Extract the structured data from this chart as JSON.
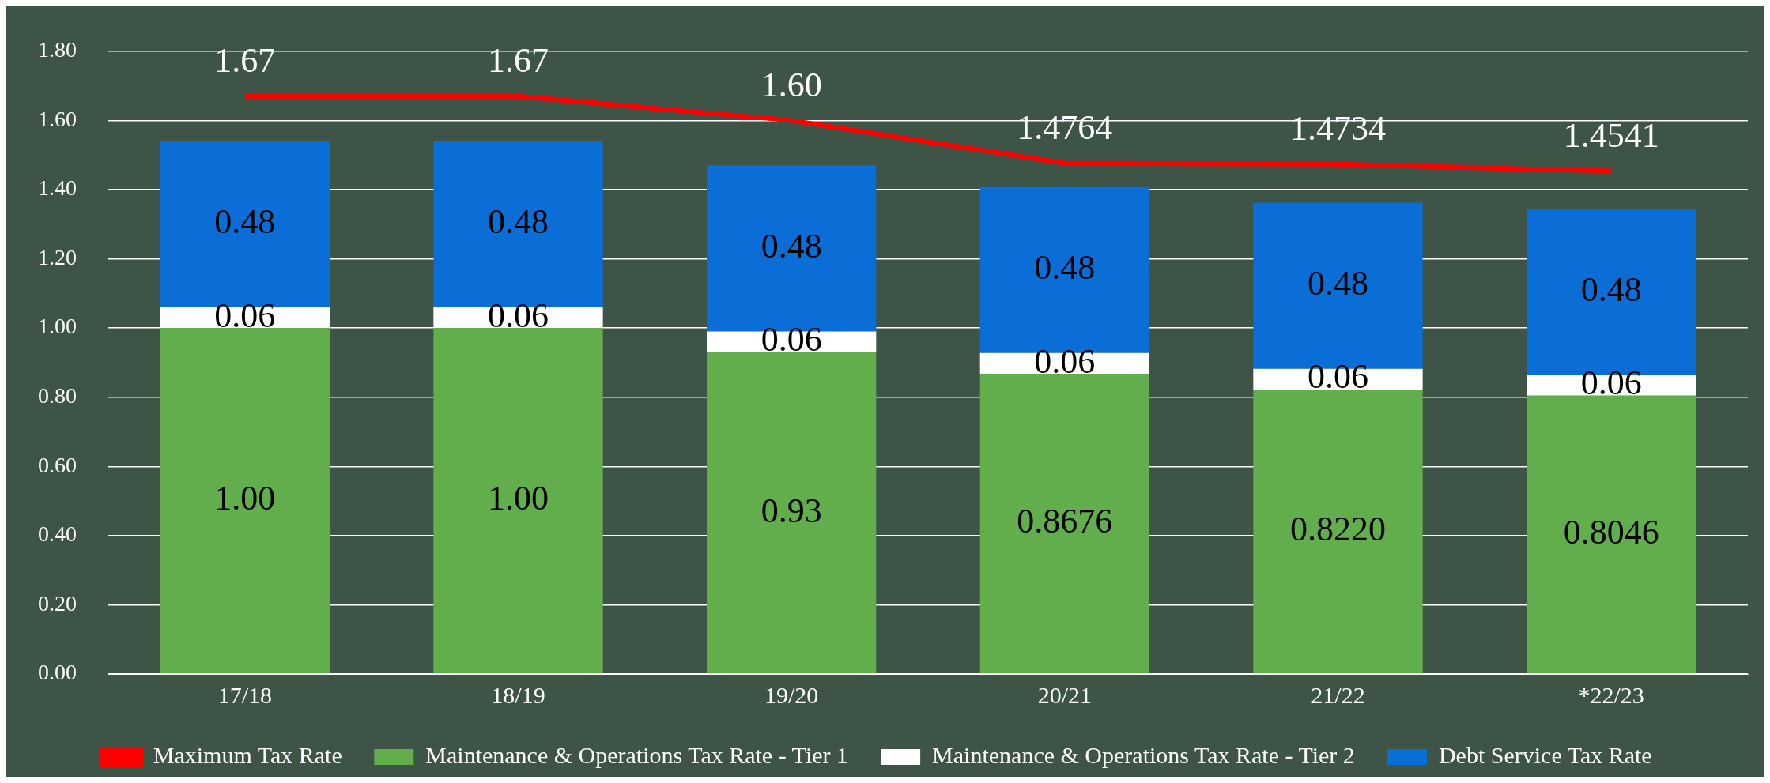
{
  "chart_data": {
    "type": "bar",
    "stacked": true,
    "categories": [
      "17/18",
      "18/19",
      "19/20",
      "20/21",
      "21/22",
      "*22/23"
    ],
    "series": [
      {
        "name": "Maintenance & Operations Tax Rate - Tier 1",
        "color": "#62ad4c",
        "values": [
          1.0,
          1.0,
          0.93,
          0.8676,
          0.822,
          0.8046
        ],
        "value_labels": [
          "1.00",
          "1.00",
          "0.93",
          "0.8676",
          "0.8220",
          "0.8046"
        ]
      },
      {
        "name": "Maintenance & Operations Tax Rate - Tier 2",
        "color": "#ffffff",
        "values": [
          0.06,
          0.06,
          0.06,
          0.06,
          0.06,
          0.06
        ],
        "value_labels": [
          "0.06",
          "0.06",
          "0.06",
          "0.06",
          "0.06",
          "0.06"
        ]
      },
      {
        "name": "Debt Service Tax Rate",
        "color": "#0a6ed6",
        "values": [
          0.48,
          0.48,
          0.48,
          0.48,
          0.48,
          0.48
        ],
        "value_labels": [
          "0.48",
          "0.48",
          "0.48",
          "0.48",
          "0.48",
          "0.48"
        ]
      },
      {
        "name": "Maximum Tax Rate",
        "type": "line",
        "color": "#ff0000",
        "marker": "none",
        "values": [
          1.67,
          1.67,
          1.6,
          1.4764,
          1.4734,
          1.4541
        ],
        "value_labels": [
          "1.67",
          "1.67",
          "1.60",
          "1.4764",
          "1.4734",
          "1.4541"
        ]
      }
    ],
    "ylim": [
      0,
      1.8
    ],
    "yticks": [
      {
        "value": 0,
        "label": "0.00"
      },
      {
        "value": 0.2,
        "label": "0.20"
      },
      {
        "value": 0.4,
        "label": "0.40"
      },
      {
        "value": 0.6,
        "label": "0.60"
      },
      {
        "value": 0.8,
        "label": "0.80"
      },
      {
        "value": 1.0,
        "label": "1.00"
      },
      {
        "value": 1.2,
        "label": "1.20"
      },
      {
        "value": 1.4,
        "label": "1.40"
      },
      {
        "value": 1.6,
        "label": "1.60"
      },
      {
        "value": 1.8,
        "label": "1.80"
      }
    ],
    "grid": "y",
    "legend": "bottom"
  }
}
